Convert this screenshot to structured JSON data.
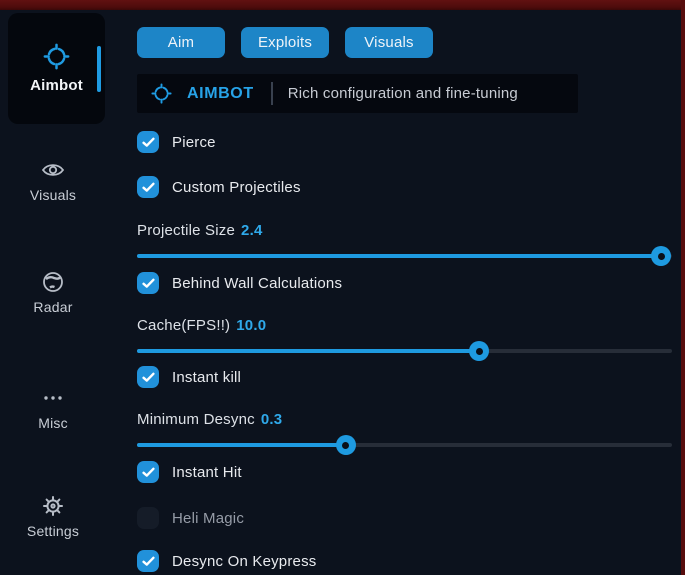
{
  "colors": {
    "accent": "#1f9be2",
    "tab_blue": "#1d85c7",
    "checkbox_blue": "#2191da",
    "slider_fill": "#1e9ae0",
    "value_text": "#2fa9ea",
    "background": "#0c121d",
    "panel": "#05080f",
    "red_border": "#570d0d"
  },
  "sidebar": {
    "items": [
      {
        "id": "aimbot",
        "label": "Aimbot",
        "icon": "crosshair-icon",
        "active": true
      },
      {
        "id": "visuals",
        "label": "Visuals",
        "icon": "eye-icon",
        "active": false
      },
      {
        "id": "radar",
        "label": "Radar",
        "icon": "globe-icon",
        "active": false
      },
      {
        "id": "misc",
        "label": "Misc",
        "icon": "ellipsis-icon",
        "active": false
      },
      {
        "id": "settings",
        "label": "Settings",
        "icon": "gear-icon",
        "active": false
      }
    ]
  },
  "tabs": [
    {
      "id": "aim",
      "label": "Aim"
    },
    {
      "id": "exploits",
      "label": "Exploits"
    },
    {
      "id": "visuals",
      "label": "Visuals"
    }
  ],
  "header": {
    "icon": "crosshair-icon",
    "title": "AIMBOT",
    "subtitle": "Rich configuration and fine-tuning"
  },
  "controls": [
    {
      "type": "checkbox",
      "id": "pierce",
      "label": "Pierce",
      "checked": true
    },
    {
      "type": "checkbox",
      "id": "custom-projectiles",
      "label": "Custom Projectiles",
      "checked": true
    },
    {
      "type": "slider",
      "id": "projectile-size",
      "label": "Projectile Size",
      "value": "2.4",
      "percent": 98
    },
    {
      "type": "checkbox",
      "id": "behind-wall-calculations",
      "label": "Behind Wall Calculations",
      "checked": true
    },
    {
      "type": "slider",
      "id": "cache-fps",
      "label": "Cache(FPS!!)",
      "value": "10.0",
      "percent": 64
    },
    {
      "type": "checkbox",
      "id": "instant-kill",
      "label": "Instant kill",
      "checked": true
    },
    {
      "type": "slider",
      "id": "minimum-desync",
      "label": "Minimum Desync",
      "value": "0.3",
      "percent": 39
    },
    {
      "type": "checkbox",
      "id": "instant-hit",
      "label": "Instant Hit",
      "checked": true
    },
    {
      "type": "checkbox",
      "id": "heli-magic",
      "label": "Heli Magic",
      "checked": false
    },
    {
      "type": "checkbox",
      "id": "desync-on-keypress",
      "label": "Desync On Keypress",
      "checked": true
    }
  ]
}
